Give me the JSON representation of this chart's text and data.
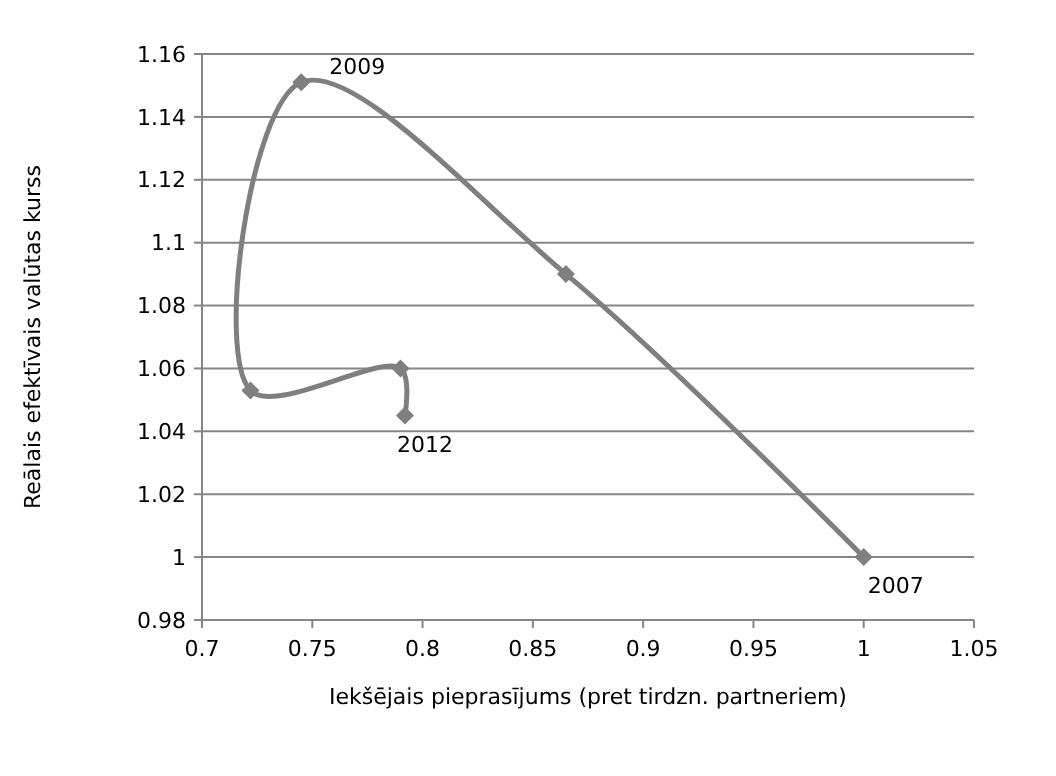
{
  "chart_data": {
    "type": "line",
    "xlabel": "Iekšējais pieprasījums (pret tirdzn. partneriem)",
    "ylabel": "Reālais efektīvais valūtas kurss",
    "x": [
      1.0,
      0.865,
      0.745,
      0.722,
      0.79,
      0.792
    ],
    "series": [
      {
        "color": "#7f7f7f",
        "values": [
          1.0,
          1.09,
          1.151,
          1.053,
          1.06,
          1.045
        ]
      }
    ],
    "xlim": [
      0.7,
      1.05
    ],
    "xticks": [
      0.7,
      0.75,
      0.8,
      0.85,
      0.9,
      0.95,
      1,
      1.05
    ],
    "ylim": [
      0.98,
      1.16
    ],
    "yticks": [
      0.98,
      1,
      1.02,
      1.04,
      1.06,
      1.08,
      1.1,
      1.12,
      1.14,
      1.16
    ],
    "grid": "y",
    "marker": "diamond",
    "line_style": "solid",
    "annotations": [
      {
        "text": "2007",
        "x": 1.0,
        "y": 1.0
      },
      {
        "text": "2009",
        "x": 0.745,
        "y": 1.151
      },
      {
        "text": "2012",
        "x": 0.792,
        "y": 1.045
      }
    ]
  }
}
